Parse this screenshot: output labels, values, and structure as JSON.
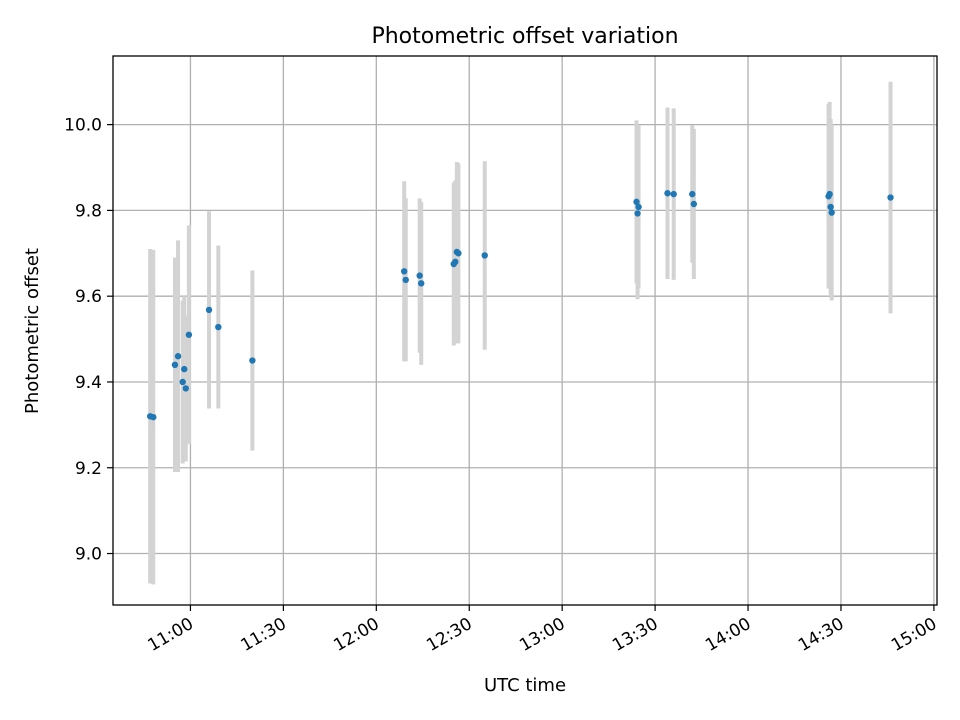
{
  "chart_data": {
    "type": "scatter",
    "title": "Photometric offset variation",
    "xlabel": "UTC time",
    "ylabel": "Photometric offset",
    "grid": true,
    "xlim": [
      "10:35",
      "15:01"
    ],
    "ylim": [
      8.88,
      10.16
    ],
    "xticks": [
      "11:00",
      "11:30",
      "12:00",
      "12:30",
      "13:00",
      "13:30",
      "14:00",
      "14:30",
      "15:00"
    ],
    "yticks": [
      "9.0",
      "9.2",
      "9.4",
      "9.6",
      "9.8",
      "10.0"
    ],
    "colors": {
      "point": "#1f77b4",
      "errorbar": "#d3d3d3",
      "grid": "#b0b0b0"
    },
    "series": [
      {
        "points": [
          {
            "x": "10:47:00",
            "y": 9.32,
            "err": 0.39
          },
          {
            "x": "10:48:00",
            "y": 9.318,
            "err": 0.39
          },
          {
            "x": "10:55:00",
            "y": 9.44,
            "err": 0.25
          },
          {
            "x": "10:56:00",
            "y": 9.46,
            "err": 0.27
          },
          {
            "x": "10:57:30",
            "y": 9.4,
            "err": 0.19
          },
          {
            "x": "10:58:00",
            "y": 9.43,
            "err": 0.17
          },
          {
            "x": "10:58:30",
            "y": 9.385,
            "err": 0.17
          },
          {
            "x": "10:59:30",
            "y": 9.51,
            "err": 0.255
          },
          {
            "x": "11:06:00",
            "y": 9.568,
            "err": 0.23
          },
          {
            "x": "11:09:00",
            "y": 9.528,
            "err": 0.19
          },
          {
            "x": "11:20:00",
            "y": 9.45,
            "err": 0.21
          },
          {
            "x": "12:09:00",
            "y": 9.658,
            "err": 0.21
          },
          {
            "x": "12:09:30",
            "y": 9.638,
            "err": 0.19
          },
          {
            "x": "12:14:00",
            "y": 9.648,
            "err": 0.18
          },
          {
            "x": "12:14:30",
            "y": 9.63,
            "err": 0.19
          },
          {
            "x": "12:25:00",
            "y": 9.675,
            "err": 0.19
          },
          {
            "x": "12:25:30",
            "y": 9.68,
            "err": 0.19
          },
          {
            "x": "12:26:00",
            "y": 9.703,
            "err": 0.21
          },
          {
            "x": "12:26:30",
            "y": 9.7,
            "err": 0.21
          },
          {
            "x": "12:35:00",
            "y": 9.695,
            "err": 0.22
          },
          {
            "x": "13:24:00",
            "y": 9.82,
            "err": 0.19
          },
          {
            "x": "13:24:20",
            "y": 9.793,
            "err": 0.2
          },
          {
            "x": "13:24:40",
            "y": 9.808,
            "err": 0.19
          },
          {
            "x": "13:34:00",
            "y": 9.84,
            "err": 0.2
          },
          {
            "x": "13:36:00",
            "y": 9.838,
            "err": 0.2
          },
          {
            "x": "13:42:00",
            "y": 9.838,
            "err": 0.16
          },
          {
            "x": "13:42:30",
            "y": 9.815,
            "err": 0.175
          },
          {
            "x": "14:26:00",
            "y": 9.833,
            "err": 0.215
          },
          {
            "x": "14:26:20",
            "y": 9.838,
            "err": 0.215
          },
          {
            "x": "14:26:40",
            "y": 9.808,
            "err": 0.205
          },
          {
            "x": "14:27:00",
            "y": 9.795,
            "err": 0.205
          },
          {
            "x": "14:46:00",
            "y": 9.83,
            "err": 0.27
          }
        ]
      }
    ]
  }
}
